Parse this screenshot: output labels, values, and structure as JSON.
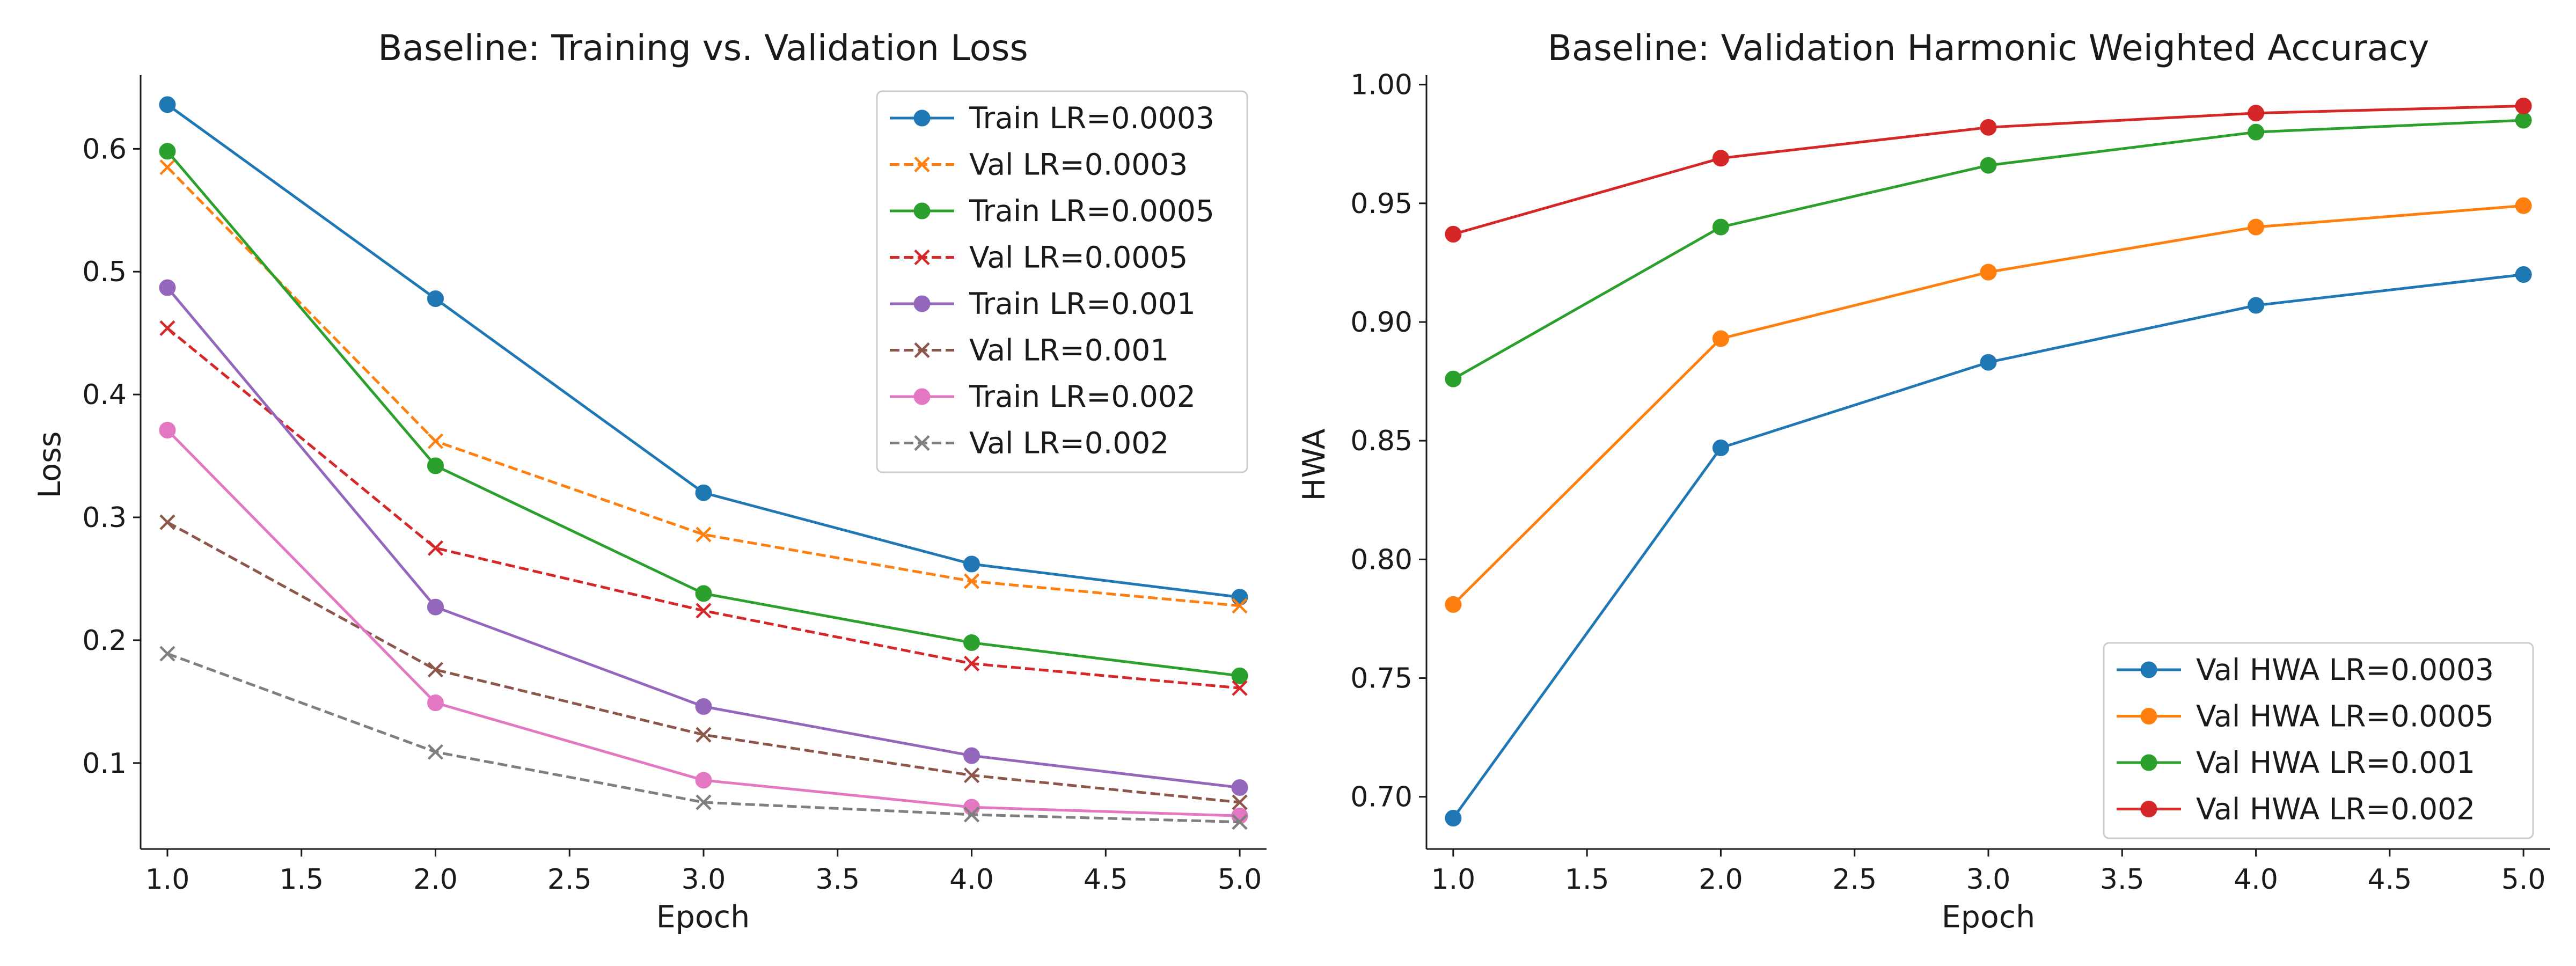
{
  "chart_data": [
    {
      "type": "line",
      "title": "Baseline: Training vs. Validation Loss",
      "xlabel": "Epoch",
      "ylabel": "Loss",
      "xlim": [
        0.9,
        5.1
      ],
      "ylim": [
        0.03,
        0.66
      ],
      "xticks": [
        1.0,
        1.5,
        2.0,
        2.5,
        3.0,
        3.5,
        4.0,
        4.5,
        5.0
      ],
      "xtick_labels": [
        "1.0",
        "1.5",
        "2.0",
        "2.5",
        "3.0",
        "3.5",
        "4.0",
        "4.5",
        "5.0"
      ],
      "yticks": [
        0.1,
        0.2,
        0.3,
        0.4,
        0.5,
        0.6
      ],
      "ytick_labels": [
        "0.1",
        "0.2",
        "0.3",
        "0.4",
        "0.5",
        "0.6"
      ],
      "grid": false,
      "legend_position": "top-right",
      "x": [
        1,
        2,
        3,
        4,
        5
      ],
      "series": [
        {
          "name": "Train LR=0.0003",
          "color": "#1f77b4",
          "marker": "circle",
          "dashed": false,
          "values": [
            0.636,
            0.478,
            0.32,
            0.262,
            0.235
          ]
        },
        {
          "name": "Val LR=0.0003",
          "color": "#ff7f0e",
          "marker": "x",
          "dashed": true,
          "values": [
            0.585,
            0.362,
            0.286,
            0.248,
            0.228
          ]
        },
        {
          "name": "Train LR=0.0005",
          "color": "#2ca02c",
          "marker": "circle",
          "dashed": false,
          "values": [
            0.598,
            0.342,
            0.238,
            0.198,
            0.171
          ]
        },
        {
          "name": "Val LR=0.0005",
          "color": "#d62728",
          "marker": "x",
          "dashed": true,
          "values": [
            0.454,
            0.275,
            0.224,
            0.181,
            0.161
          ]
        },
        {
          "name": "Train LR=0.001",
          "color": "#9467bd",
          "marker": "circle",
          "dashed": false,
          "values": [
            0.487,
            0.227,
            0.146,
            0.106,
            0.08
          ]
        },
        {
          "name": "Val LR=0.001",
          "color": "#8c564b",
          "marker": "x",
          "dashed": true,
          "values": [
            0.296,
            0.176,
            0.123,
            0.09,
            0.068
          ]
        },
        {
          "name": "Train LR=0.002",
          "color": "#e377c2",
          "marker": "circle",
          "dashed": false,
          "values": [
            0.371,
            0.149,
            0.086,
            0.064,
            0.057
          ]
        },
        {
          "name": "Val LR=0.002",
          "color": "#7f7f7f",
          "marker": "x",
          "dashed": true,
          "values": [
            0.189,
            0.109,
            0.068,
            0.058,
            0.052
          ]
        }
      ]
    },
    {
      "type": "line",
      "title": "Baseline: Validation Harmonic Weighted Accuracy",
      "xlabel": "Epoch",
      "ylabel": "HWA",
      "xlim": [
        0.9,
        5.1
      ],
      "ylim": [
        0.678,
        1.004
      ],
      "xticks": [
        1.0,
        1.5,
        2.0,
        2.5,
        3.0,
        3.5,
        4.0,
        4.5,
        5.0
      ],
      "xtick_labels": [
        "1.0",
        "1.5",
        "2.0",
        "2.5",
        "3.0",
        "3.5",
        "4.0",
        "4.5",
        "5.0"
      ],
      "yticks": [
        0.7,
        0.75,
        0.8,
        0.85,
        0.9,
        0.95,
        1.0
      ],
      "ytick_labels": [
        "0.70",
        "0.75",
        "0.80",
        "0.85",
        "0.90",
        "0.95",
        "1.00"
      ],
      "grid": false,
      "legend_position": "bottom-right",
      "x": [
        1,
        2,
        3,
        4,
        5
      ],
      "series": [
        {
          "name": "Val HWA LR=0.0003",
          "color": "#1f77b4",
          "marker": "circle",
          "dashed": false,
          "values": [
            0.691,
            0.847,
            0.883,
            0.907,
            0.92
          ]
        },
        {
          "name": "Val HWA LR=0.0005",
          "color": "#ff7f0e",
          "marker": "circle",
          "dashed": false,
          "values": [
            0.781,
            0.893,
            0.921,
            0.94,
            0.949
          ]
        },
        {
          "name": "Val HWA LR=0.001",
          "color": "#2ca02c",
          "marker": "circle",
          "dashed": false,
          "values": [
            0.876,
            0.94,
            0.966,
            0.98,
            0.985
          ]
        },
        {
          "name": "Val HWA LR=0.002",
          "color": "#d62728",
          "marker": "circle",
          "dashed": false,
          "values": [
            0.937,
            0.969,
            0.982,
            0.988,
            0.991
          ]
        }
      ]
    }
  ]
}
